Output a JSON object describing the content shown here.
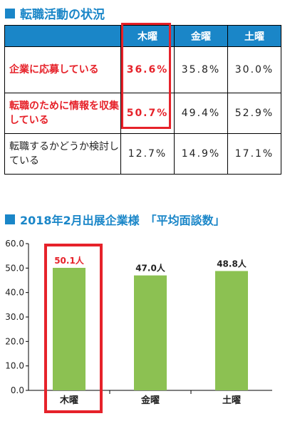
{
  "status_table": {
    "title": "転職活動の状況",
    "columns": [
      "",
      "木曜",
      "金曜",
      "土曜"
    ],
    "rows": [
      {
        "label": "企業に応募している",
        "values": [
          "36.6%",
          "35.8%",
          "30.0%"
        ],
        "highlighted": true
      },
      {
        "label": "転職のために情報を収集している",
        "values": [
          "50.7%",
          "49.4%",
          "52.9%"
        ],
        "highlighted": true
      },
      {
        "label": "転職するかどうか検討している",
        "values": [
          "12.7%",
          "14.9%",
          "17.1%"
        ],
        "highlighted": false
      }
    ],
    "highlight_color": "#e6222a",
    "header_color": "#1a86c8"
  },
  "chart_data": {
    "type": "bar",
    "title": "2018年2月出展企業様　「平均面談数」",
    "categories": [
      "木曜",
      "金曜",
      "土曜"
    ],
    "values": [
      50.1,
      47.0,
      48.8
    ],
    "data_labels": [
      "50.1人",
      "47.0人",
      "48.8人"
    ],
    "ylim": [
      0,
      60
    ],
    "yticks": [
      "0.0",
      "10.0",
      "20.0",
      "30.0",
      "40.0",
      "50.0",
      "60.0"
    ],
    "xlabel": "",
    "ylabel": "",
    "bar_color": "#8cc152",
    "highlight_category": "木曜",
    "grid": false,
    "legend": "none"
  }
}
